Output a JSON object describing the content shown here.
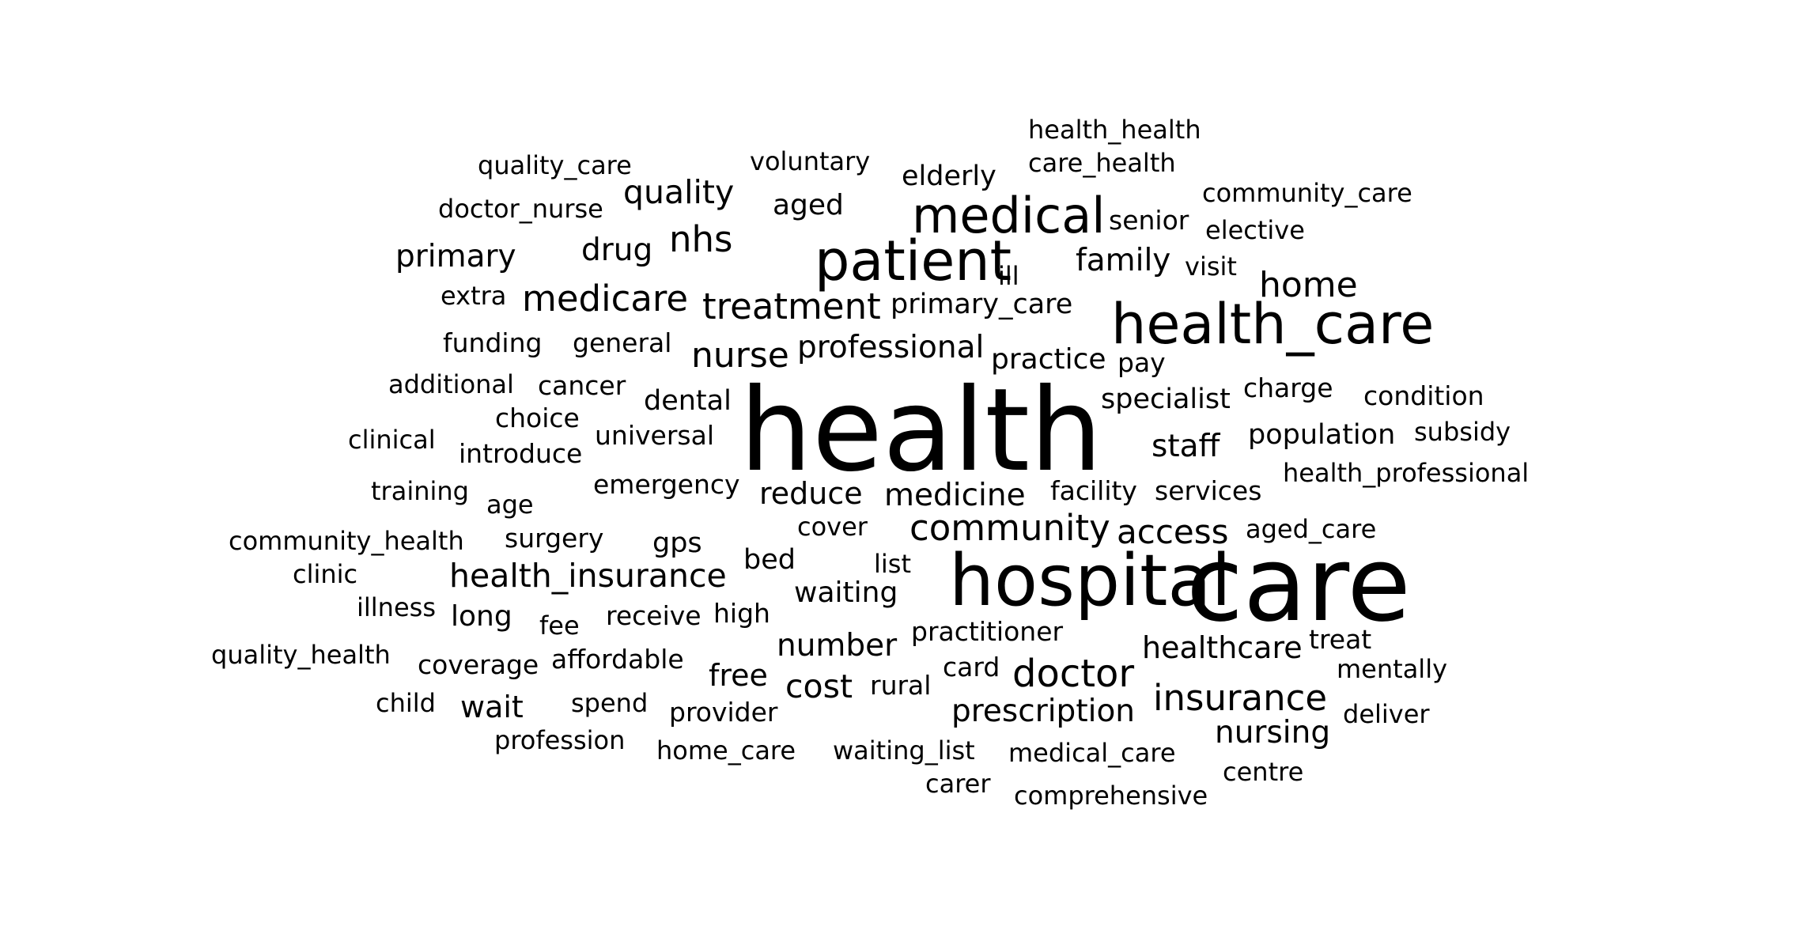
{
  "cloud": {
    "text_color": "#000000",
    "background": "#ffffff",
    "words": [
      {
        "text": "health",
        "weight": 1.0
      },
      {
        "text": "care",
        "weight": 0.9
      },
      {
        "text": "hospital",
        "weight": 0.62
      },
      {
        "text": "health_care",
        "weight": 0.48
      },
      {
        "text": "patient",
        "weight": 0.48
      },
      {
        "text": "medical",
        "weight": 0.43
      },
      {
        "text": "doctor",
        "weight": 0.33
      },
      {
        "text": "community",
        "weight": 0.31
      },
      {
        "text": "insurance",
        "weight": 0.31
      },
      {
        "text": "treatment",
        "weight": 0.31
      },
      {
        "text": "medicare",
        "weight": 0.31
      },
      {
        "text": "nhs",
        "weight": 0.31
      },
      {
        "text": "home",
        "weight": 0.3
      },
      {
        "text": "nurse",
        "weight": 0.3
      },
      {
        "text": "access",
        "weight": 0.29
      },
      {
        "text": "quality",
        "weight": 0.28
      },
      {
        "text": "health_insurance",
        "weight": 0.28
      },
      {
        "text": "cost",
        "weight": 0.28
      },
      {
        "text": "nursing",
        "weight": 0.27
      },
      {
        "text": "professional",
        "weight": 0.27
      },
      {
        "text": "medicine",
        "weight": 0.27
      },
      {
        "text": "prescription",
        "weight": 0.27
      },
      {
        "text": "number",
        "weight": 0.27
      },
      {
        "text": "primary",
        "weight": 0.27
      },
      {
        "text": "drug",
        "weight": 0.27
      },
      {
        "text": "family",
        "weight": 0.27
      },
      {
        "text": "staff",
        "weight": 0.27
      },
      {
        "text": "healthcare",
        "weight": 0.26
      },
      {
        "text": "free",
        "weight": 0.26
      },
      {
        "text": "reduce",
        "weight": 0.26
      },
      {
        "text": "wait",
        "weight": 0.26
      },
      {
        "text": "practice",
        "weight": 0.25
      },
      {
        "text": "aged",
        "weight": 0.25
      },
      {
        "text": "long",
        "weight": 0.25
      },
      {
        "text": "waiting",
        "weight": 0.25
      },
      {
        "text": "dental",
        "weight": 0.24
      },
      {
        "text": "specialist",
        "weight": 0.24
      },
      {
        "text": "primary_care",
        "weight": 0.24
      },
      {
        "text": "elderly",
        "weight": 0.24
      },
      {
        "text": "bed",
        "weight": 0.24
      },
      {
        "text": "gps",
        "weight": 0.24
      },
      {
        "text": "population",
        "weight": 0.24
      },
      {
        "text": "surgery",
        "weight": 0.23
      },
      {
        "text": "universal",
        "weight": 0.23
      },
      {
        "text": "facility",
        "weight": 0.23
      },
      {
        "text": "services",
        "weight": 0.23
      },
      {
        "text": "cancer",
        "weight": 0.23
      },
      {
        "text": "funding",
        "weight": 0.23
      },
      {
        "text": "general",
        "weight": 0.23
      },
      {
        "text": "choice",
        "weight": 0.23
      },
      {
        "text": "charge",
        "weight": 0.23
      },
      {
        "text": "emergency",
        "weight": 0.23
      },
      {
        "text": "senior",
        "weight": 0.23
      },
      {
        "text": "condition",
        "weight": 0.23
      },
      {
        "text": "introduce",
        "weight": 0.23
      },
      {
        "text": "pay",
        "weight": 0.23
      },
      {
        "text": "rural",
        "weight": 0.23
      },
      {
        "text": "receive",
        "weight": 0.23
      },
      {
        "text": "high",
        "weight": 0.23
      },
      {
        "text": "practitioner",
        "weight": 0.23
      },
      {
        "text": "treat",
        "weight": 0.23
      },
      {
        "text": "provider",
        "weight": 0.23
      },
      {
        "text": "coverage",
        "weight": 0.23
      },
      {
        "text": "affordable",
        "weight": 0.23
      },
      {
        "text": "card",
        "weight": 0.23
      },
      {
        "text": "training",
        "weight": 0.22
      },
      {
        "text": "additional",
        "weight": 0.22
      },
      {
        "text": "clinical",
        "weight": 0.22
      },
      {
        "text": "age",
        "weight": 0.22
      },
      {
        "text": "voluntary",
        "weight": 0.22
      },
      {
        "text": "quality_care",
        "weight": 0.22
      },
      {
        "text": "doctor_nurse",
        "weight": 0.22
      },
      {
        "text": "health_health",
        "weight": 0.22
      },
      {
        "text": "care_health",
        "weight": 0.22
      },
      {
        "text": "community_care",
        "weight": 0.22
      },
      {
        "text": "elective",
        "weight": 0.22
      },
      {
        "text": "visit",
        "weight": 0.22
      },
      {
        "text": "ill",
        "weight": 0.22
      },
      {
        "text": "extra",
        "weight": 0.22
      },
      {
        "text": "subsidy",
        "weight": 0.22
      },
      {
        "text": "health_professional",
        "weight": 0.22
      },
      {
        "text": "aged_care",
        "weight": 0.22
      },
      {
        "text": "community_health",
        "weight": 0.22
      },
      {
        "text": "cover",
        "weight": 0.22
      },
      {
        "text": "list",
        "weight": 0.22
      },
      {
        "text": "clinic",
        "weight": 0.22
      },
      {
        "text": "illness",
        "weight": 0.22
      },
      {
        "text": "fee",
        "weight": 0.22
      },
      {
        "text": "quality_health",
        "weight": 0.22
      },
      {
        "text": "mentally",
        "weight": 0.22
      },
      {
        "text": "child",
        "weight": 0.22
      },
      {
        "text": "spend",
        "weight": 0.22
      },
      {
        "text": "deliver",
        "weight": 0.22
      },
      {
        "text": "profession",
        "weight": 0.22
      },
      {
        "text": "home_care",
        "weight": 0.22
      },
      {
        "text": "waiting_list",
        "weight": 0.22
      },
      {
        "text": "medical_care",
        "weight": 0.22
      },
      {
        "text": "centre",
        "weight": 0.22
      },
      {
        "text": "carer",
        "weight": 0.22
      },
      {
        "text": "comprehensive",
        "weight": 0.22
      }
    ]
  }
}
